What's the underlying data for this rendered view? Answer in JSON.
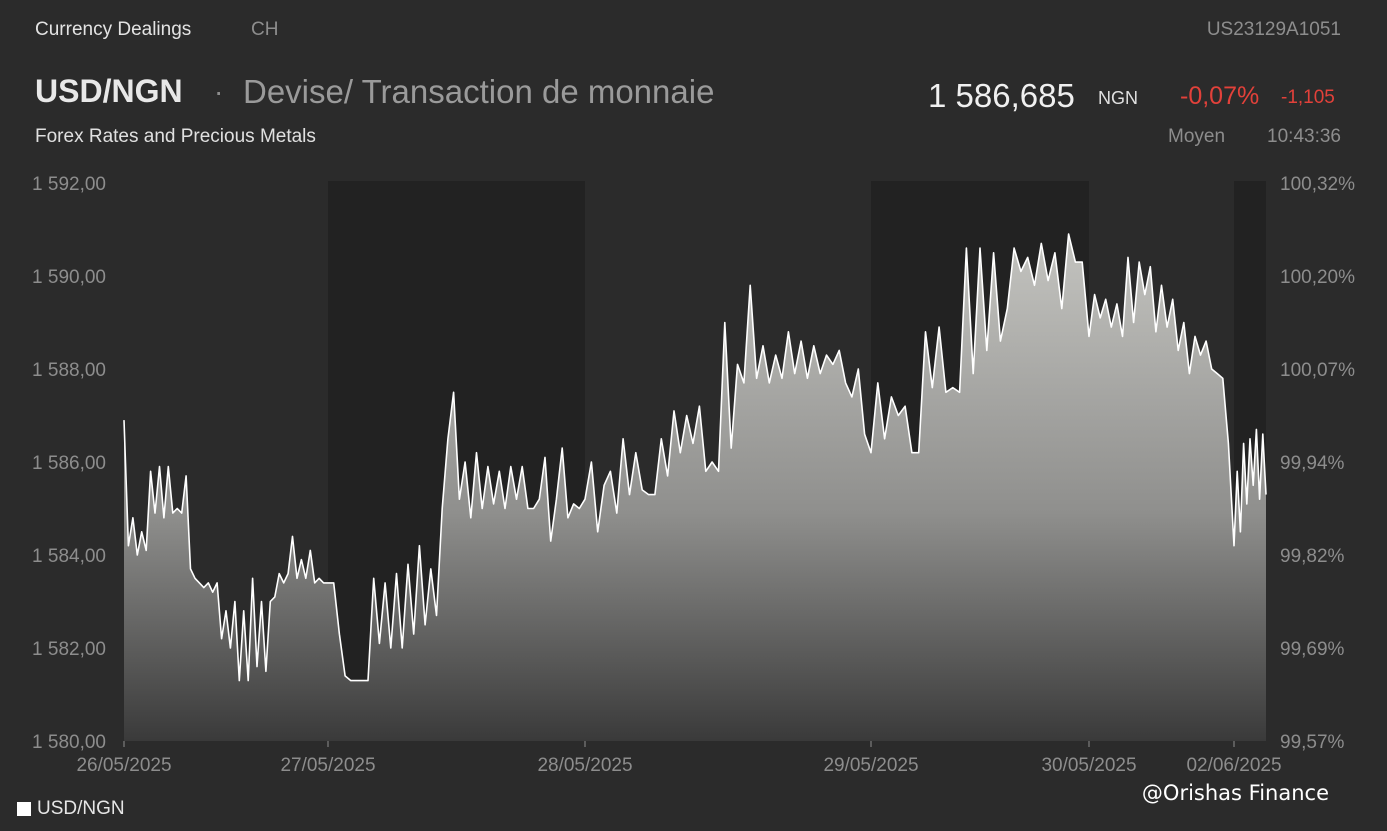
{
  "header": {
    "source": "Currency Dealings",
    "exchange": "CH",
    "isin": "US23129A1051",
    "pair": "USD/NGN",
    "separator": "·",
    "description": "Devise/ Transaction de monnaie",
    "subtitle": "Forex Rates and Precious Metals",
    "price": "1 586,685",
    "currency": "NGN",
    "change_pct": "-0,07%",
    "change_abs": "-1,105",
    "price_type": "Moyen",
    "time": "10:43:36"
  },
  "legend": {
    "label": "USD/NGN"
  },
  "watermark": "@Orishas Finance",
  "colors": {
    "background": "#2b2b2b",
    "closed_band": "#222222",
    "line": "#ffffff",
    "negative": "#e2413a"
  },
  "chart_data": {
    "type": "area",
    "ylim": [
      1580,
      1592
    ],
    "yticks_left": [
      "1 592,00",
      "1 590,00",
      "1 588,00",
      "1 586,00",
      "1 584,00",
      "1 582,00",
      "1 580,00"
    ],
    "yticks_right": [
      "100,32%",
      "100,20%",
      "100,07%",
      "99,94%",
      "99,82%",
      "99,69%",
      "99,57%"
    ],
    "xticks": [
      "26/05/2025",
      "27/05/2025",
      "28/05/2025",
      "29/05/2025",
      "30/05/2025",
      "02/06/2025"
    ],
    "series": [
      {
        "name": "USD/NGN",
        "segments": [
          {
            "day": "26/05/2025",
            "values": [
              1586.9,
              1584.2,
              1584.8,
              1584.0,
              1584.5,
              1584.1,
              1585.8,
              1584.9,
              1585.9,
              1584.8,
              1585.9,
              1584.9,
              1585.0,
              1584.9,
              1585.7,
              1583.7,
              1583.5,
              1583.4,
              1583.3,
              1583.4,
              1583.2,
              1583.4,
              1582.2,
              1582.8,
              1582.0,
              1583.0,
              1581.3,
              1582.8,
              1581.3,
              1583.5,
              1581.6,
              1583.0,
              1581.5,
              1583.0,
              1583.1,
              1583.6,
              1583.4,
              1583.6,
              1584.4,
              1583.5,
              1583.9,
              1583.5,
              1584.1,
              1583.4,
              1583.5,
              1583.4
            ]
          },
          {
            "day": "27/05/2025",
            "values": [
              1583.4,
              1583.4,
              1582.3,
              1581.4,
              1581.3,
              1581.3,
              1581.3,
              1581.3,
              1583.5,
              1582.1,
              1583.4,
              1582.0,
              1583.6,
              1582.0,
              1583.8,
              1582.3,
              1584.2,
              1582.5,
              1583.7,
              1582.7,
              1585.0,
              1586.5,
              1587.5,
              1585.2,
              1586.0,
              1584.8,
              1586.2,
              1585.0,
              1585.9,
              1585.1,
              1585.8,
              1585.0,
              1585.9,
              1585.2,
              1585.9,
              1585.0,
              1585.0,
              1585.2,
              1586.1,
              1584.3,
              1585.2,
              1586.3,
              1584.8,
              1585.1,
              1585.0
            ]
          },
          {
            "day": "28/05/2025",
            "values": [
              1585.2,
              1586.0,
              1584.5,
              1585.5,
              1585.8,
              1584.9,
              1586.5,
              1585.3,
              1586.2,
              1585.4,
              1585.3,
              1585.3,
              1586.5,
              1585.7,
              1587.1,
              1586.2,
              1587.0,
              1586.4,
              1587.2,
              1585.8,
              1586.0,
              1585.8,
              1589.0,
              1586.3,
              1588.1,
              1587.7,
              1589.8,
              1587.8,
              1588.5,
              1587.7,
              1588.3,
              1587.8,
              1588.8,
              1587.9,
              1588.6,
              1587.8,
              1588.5,
              1587.9,
              1588.3,
              1588.1,
              1588.4,
              1587.7,
              1587.4,
              1588.0,
              1586.6
            ]
          },
          {
            "day": "29/05/2025",
            "values": [
              1586.2,
              1587.7,
              1586.5,
              1587.4,
              1587.0,
              1587.2,
              1586.2,
              1586.2,
              1588.8,
              1587.6,
              1588.9,
              1587.5,
              1587.6,
              1587.5,
              1590.6,
              1587.9,
              1590.6,
              1588.4,
              1590.5,
              1588.6,
              1589.3,
              1590.6,
              1590.1,
              1590.4,
              1589.8,
              1590.7,
              1589.9,
              1590.5,
              1589.3,
              1590.9,
              1590.3,
              1590.3
            ]
          },
          {
            "day": "30/05/2025",
            "values": [
              1588.7,
              1589.6,
              1589.1,
              1589.5,
              1588.9,
              1589.4,
              1588.7,
              1590.4,
              1589.0,
              1590.3,
              1589.6,
              1590.2,
              1588.8,
              1589.8,
              1588.9,
              1589.5,
              1588.4,
              1589.0,
              1587.9,
              1588.7,
              1588.3,
              1588.6,
              1588.0,
              1587.9,
              1587.8,
              1586.4
            ]
          },
          {
            "day": "02/06/2025",
            "values": [
              1584.2,
              1585.8,
              1584.5,
              1586.4,
              1585.1,
              1586.5,
              1585.5,
              1586.7,
              1585.2,
              1586.6
            ]
          }
        ]
      }
    ],
    "closed_bands": [
      [
        "27/05/2025",
        "28/05/2025"
      ],
      [
        "29/05/2025",
        "30/05/2025"
      ],
      [
        "02/06/2025",
        "02/06/2025"
      ]
    ]
  }
}
